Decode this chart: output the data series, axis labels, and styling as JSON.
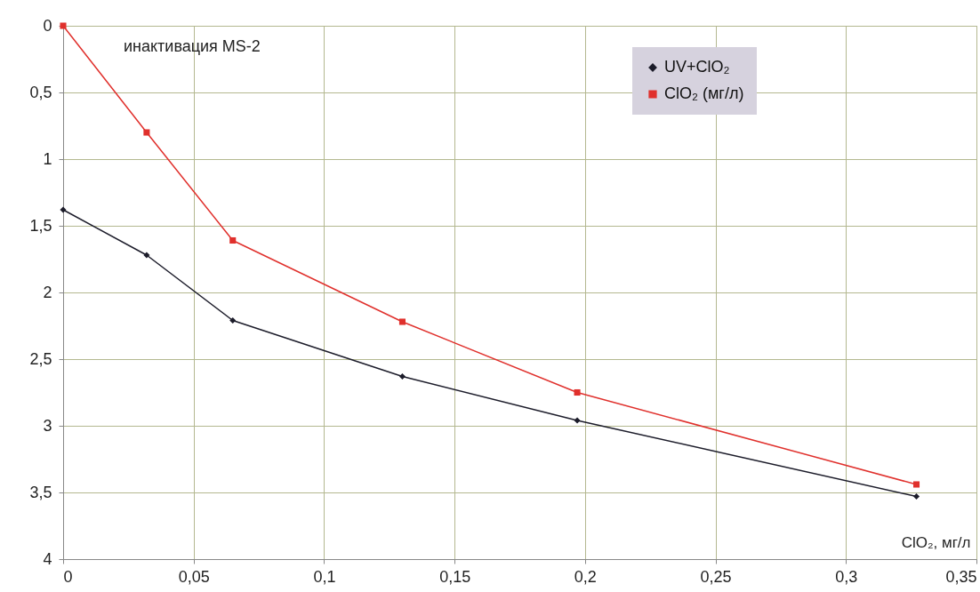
{
  "chart_data": {
    "type": "line",
    "annotations": [
      "инактивация MS-2"
    ],
    "xlabel": "ClO₂, мг/л",
    "x": [
      0,
      0.032,
      0.065,
      0.13,
      0.197,
      0.327
    ],
    "series": [
      {
        "name": "UV+ClO₂",
        "color": "#1c1c2a",
        "marker": "diamond",
        "values": [
          1.38,
          1.72,
          2.21,
          2.63,
          2.96,
          3.53
        ]
      },
      {
        "name": "ClO₂ (мг/л)",
        "color": "#e0302c",
        "marker": "square",
        "values": [
          0,
          0.8,
          1.61,
          2.22,
          2.75,
          3.44
        ]
      }
    ],
    "xlim": [
      0,
      0.35
    ],
    "xticks": [
      0,
      {
        "value": 0.05,
        "label": "0,05"
      },
      {
        "value": 0.1,
        "label": "0,1"
      },
      {
        "value": 0.15,
        "label": "0,15"
      },
      {
        "value": 0.2,
        "label": "0,2"
      },
      {
        "value": 0.25,
        "label": "0,25"
      },
      {
        "value": 0.3,
        "label": "0,3"
      },
      {
        "value": 0.35,
        "label": "0,35"
      }
    ],
    "ylim": [
      4,
      0
    ],
    "yticks": [
      0,
      {
        "value": 0.5,
        "label": "0,5"
      },
      1,
      {
        "value": 1.5,
        "label": "1,5"
      },
      2,
      {
        "value": 2.5,
        "label": "2,5"
      },
      3,
      {
        "value": 3.5,
        "label": "3,5"
      },
      4
    ],
    "grid": true,
    "legend": "top right",
    "line_style": "solid"
  }
}
